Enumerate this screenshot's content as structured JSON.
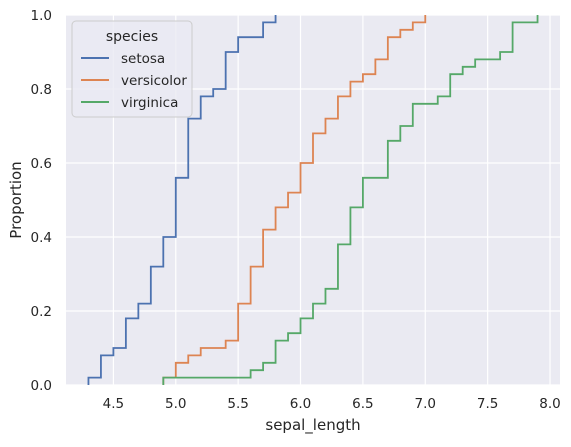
{
  "chart_data": {
    "type": "line",
    "xlabel": "sepal_length",
    "ylabel": "Proportion",
    "xlim": [
      4.12,
      8.08
    ],
    "ylim": [
      0,
      1
    ],
    "x_ticks": [
      4.5,
      5.0,
      5.5,
      6.0,
      6.5,
      7.0,
      7.5,
      8.0
    ],
    "x_tick_labels": [
      "4.5",
      "5.0",
      "5.5",
      "6.0",
      "6.5",
      "7.0",
      "7.5",
      "8.0"
    ],
    "y_ticks": [
      0.0,
      0.2,
      0.4,
      0.6,
      0.8,
      1.0
    ],
    "y_tick_labels": [
      "0.0",
      "0.2",
      "0.4",
      "0.6",
      "0.8",
      "1.0"
    ],
    "grid": true,
    "legend": {
      "title": "species",
      "position": "top-left"
    },
    "series": [
      {
        "name": "setosa",
        "color": "#4c72b0",
        "x": [
          4.3,
          4.4,
          4.5,
          4.6,
          4.7,
          4.8,
          4.9,
          5.0,
          5.1,
          5.2,
          5.3,
          5.4,
          5.5,
          5.7,
          5.8
        ],
        "y": [
          0.02,
          0.08,
          0.1,
          0.18,
          0.22,
          0.32,
          0.4,
          0.56,
          0.72,
          0.78,
          0.8,
          0.9,
          0.94,
          0.98,
          1.0
        ]
      },
      {
        "name": "versicolor",
        "color": "#dd8452",
        "x": [
          4.9,
          5.0,
          5.1,
          5.2,
          5.4,
          5.5,
          5.6,
          5.7,
          5.8,
          5.9,
          6.0,
          6.1,
          6.2,
          6.3,
          6.4,
          6.5,
          6.6,
          6.7,
          6.8,
          6.9,
          7.0
        ],
        "y": [
          0.02,
          0.06,
          0.08,
          0.1,
          0.12,
          0.22,
          0.32,
          0.42,
          0.48,
          0.52,
          0.6,
          0.68,
          0.72,
          0.78,
          0.82,
          0.84,
          0.88,
          0.94,
          0.96,
          0.98,
          1.0
        ]
      },
      {
        "name": "virginica",
        "color": "#55a868",
        "x": [
          4.9,
          5.6,
          5.7,
          5.8,
          5.9,
          6.0,
          6.1,
          6.2,
          6.3,
          6.4,
          6.5,
          6.7,
          6.8,
          6.9,
          7.1,
          7.2,
          7.3,
          7.4,
          7.6,
          7.7,
          7.9
        ],
        "y": [
          0.02,
          0.04,
          0.06,
          0.12,
          0.14,
          0.18,
          0.22,
          0.26,
          0.38,
          0.48,
          0.56,
          0.66,
          0.7,
          0.76,
          0.78,
          0.84,
          0.86,
          0.88,
          0.9,
          0.98,
          1.0
        ]
      }
    ]
  }
}
